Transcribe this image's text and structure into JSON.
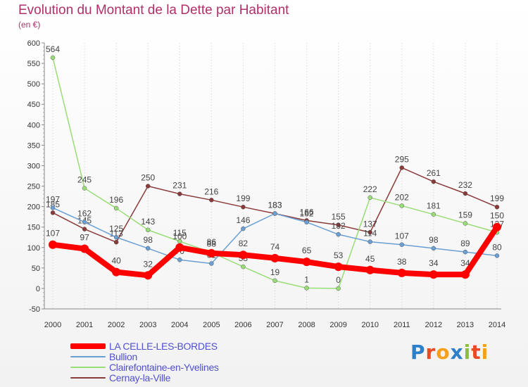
{
  "header": {
    "title": "Evolution du Montant de la Dette par Habitant",
    "subtitle": "(en €)"
  },
  "brand": {
    "text": "Proxiti",
    "letter_colors": [
      "#2e7fc9",
      "#e84a24",
      "#f4a01c",
      "#2e7fc9",
      "#8cbe3c",
      "#e84a24",
      "#f4a01c"
    ]
  },
  "chart_data": {
    "type": "line",
    "title": "Evolution du Montant de la Dette par Habitant",
    "subtitle": "(en €)",
    "xlabel": "",
    "ylabel": "",
    "x": [
      "2000",
      "2001",
      "2002",
      "2003",
      "2004",
      "2005",
      "2006",
      "2007",
      "2008",
      "2009",
      "2010",
      "2011",
      "2012",
      "2013",
      "2014"
    ],
    "y_ticks": [
      "600",
      "550",
      "500",
      "450",
      "400",
      "350",
      "300",
      "250",
      "200",
      "150",
      "100",
      "50",
      "0",
      "-50"
    ],
    "ylim": [
      -50,
      600
    ],
    "grid": "vertical dotted",
    "legend_position": "bottom-left",
    "series": [
      {
        "name": "LA CELLE-LES-BORDES",
        "color": "#ff0000",
        "values": [
          107,
          97,
          40,
          32,
          100,
          86,
          82,
          74,
          65,
          53,
          45,
          38,
          34,
          34,
          150
        ],
        "label_values": [
          "107",
          "97",
          "40",
          "32",
          "100",
          "86",
          "82",
          "74",
          "65",
          "53",
          "45",
          "38",
          "34",
          "34",
          "150"
        ]
      },
      {
        "name": "Bullion",
        "color": "#6a9fd4",
        "values": [
          197,
          162,
          125,
          98,
          70,
          61,
          146,
          183,
          162,
          132,
          114,
          107,
          98,
          89,
          80
        ],
        "label_values": [
          "197",
          "162",
          "125",
          "98",
          "70",
          "61",
          "146",
          "183",
          "162",
          "132",
          "114",
          "107",
          "98",
          "89",
          "80"
        ]
      },
      {
        "name": "Clairefontaine-en-Yvelines",
        "color": "#99dd77",
        "values": [
          564,
          245,
          196,
          143,
          115,
          88,
          53,
          19,
          1,
          0,
          222,
          202,
          181,
          159,
          137
        ],
        "label_values": [
          "564",
          "245",
          "196",
          "143",
          "115",
          "88",
          "53",
          "19",
          "1",
          "0",
          "222",
          "202",
          "181",
          "159",
          "137"
        ]
      },
      {
        "name": "Cernay-la-Ville",
        "color": "#8b3a3a",
        "values": [
          185,
          145,
          113,
          250,
          231,
          216,
          199,
          183,
          166,
          155,
          137,
          295,
          261,
          232,
          199
        ],
        "label_values": [
          "185",
          "145",
          "113",
          "250",
          "231",
          "216",
          "199",
          "183",
          "166",
          "155",
          "137",
          "295",
          "261",
          "232",
          "199"
        ]
      }
    ]
  }
}
